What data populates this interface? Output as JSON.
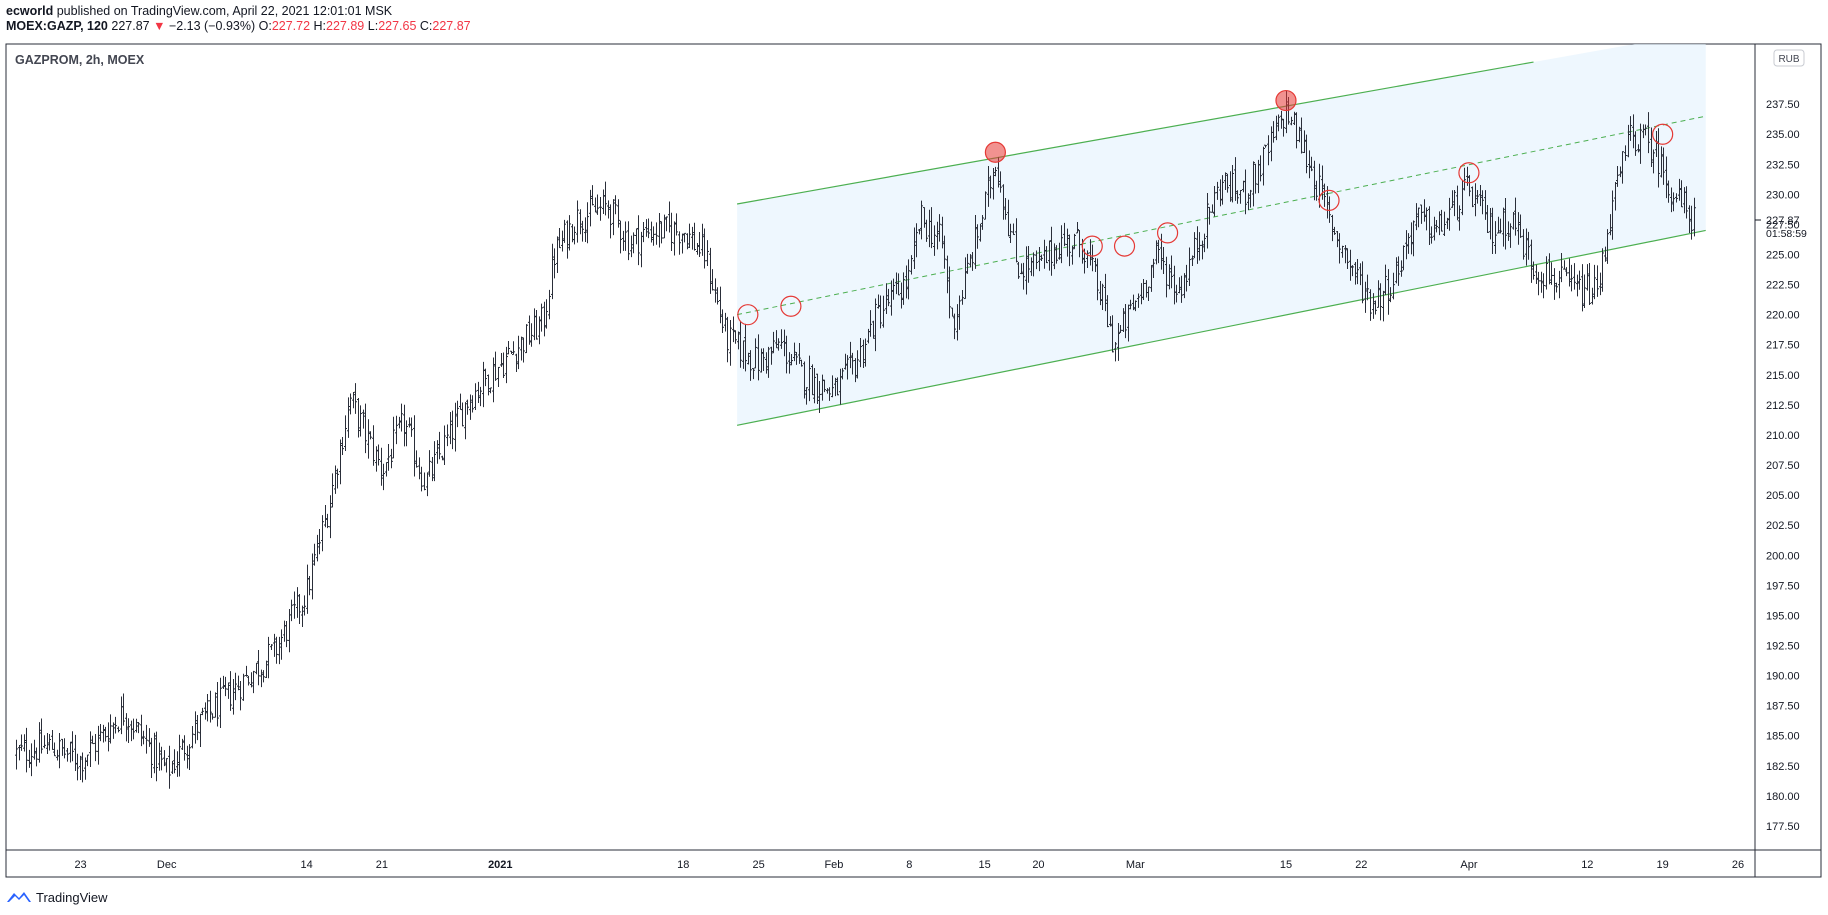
{
  "header": {
    "author": "ecworld",
    "published_text": "published on TradingView.com, April 22, 2021 12:01:01 MSK",
    "symbol": "MOEX:GAZP, 120",
    "last": "227.87",
    "change_arrow": "▼",
    "change": "−2.13 (−0.93%)",
    "o_label": "O:",
    "o_value": "227.72",
    "h_label": "H:",
    "h_value": "227.89",
    "l_label": "L:",
    "l_value": "227.65",
    "c_label": "C:",
    "c_value": "227.87"
  },
  "chart_title": "GAZPROM, 2h, MOEX",
  "currency_badge": "RUB",
  "price_tag": {
    "price": "227.87",
    "countdown": "01:58:59"
  },
  "footer": {
    "brand": "TradingView"
  },
  "colors": {
    "channel_line": "#4caf50",
    "channel_fill": "#e3f2fd",
    "marker_red": "#e53935",
    "candle": "#2a2e39",
    "text_red": "#f23645"
  },
  "chart_data": {
    "type": "candlestick",
    "title": "GAZPROM, 2h, MOEX",
    "ylim": [
      175.5,
      242.5
    ],
    "y_ticks": [
      177.5,
      180,
      182.5,
      185,
      187.5,
      190,
      192.5,
      195,
      197.5,
      200,
      202.5,
      205,
      207.5,
      210,
      212.5,
      215,
      217.5,
      220,
      222.5,
      225,
      227.5,
      230,
      232.5,
      235,
      237.5
    ],
    "x_ticks": [
      "23",
      "Dec",
      "14",
      "21",
      "2021",
      "18",
      "25",
      "Feb",
      "8",
      "15",
      "20",
      "Mar",
      "15",
      "22",
      "Apr",
      "12",
      "19",
      "26"
    ],
    "bold_x_ticks": [
      "2021"
    ],
    "close_path": [
      [
        "Nov 17",
        183.5
      ],
      [
        "Nov 20",
        184.2
      ],
      [
        "Nov 23",
        183.0
      ],
      [
        "Nov 27",
        187.0
      ],
      [
        "Dec 1",
        182.0
      ],
      [
        "Dec 4",
        186.0
      ],
      [
        "Dec 8",
        189.5
      ],
      [
        "Dec 11",
        192.0
      ],
      [
        "Dec 14",
        197.0
      ],
      [
        "Dec 16",
        204.0
      ],
      [
        "Dec 18",
        213.0
      ],
      [
        "Dec 21",
        207.0
      ],
      [
        "Dec 23",
        211.0
      ],
      [
        "Dec 25",
        206.0
      ],
      [
        "Dec 29",
        213.0
      ],
      [
        "Dec 31",
        215.0
      ],
      [
        "Jan 5",
        219.5
      ],
      [
        "Jan 6",
        225.0
      ],
      [
        "Jan 8",
        228.0
      ],
      [
        "Jan 11",
        229.0
      ],
      [
        "Jan 13",
        226.0
      ],
      [
        "Jan 15",
        227.0
      ],
      [
        "Jan 18",
        227.0
      ],
      [
        "Jan 20",
        225.0
      ],
      [
        "Jan 22",
        218.0
      ],
      [
        "Jan 25",
        216.0
      ],
      [
        "Jan 27",
        217.5
      ],
      [
        "Jan 29",
        215.0
      ],
      [
        "Feb 1",
        213.5
      ],
      [
        "Feb 3",
        216.0
      ],
      [
        "Feb 5",
        220.0
      ],
      [
        "Feb 8",
        223.0
      ],
      [
        "Feb 9",
        228.0
      ],
      [
        "Feb 11",
        226.0
      ],
      [
        "Feb 12",
        219.0
      ],
      [
        "Feb 15",
        229.0
      ],
      [
        "Feb 16",
        233.0
      ],
      [
        "Feb 18",
        224.0
      ],
      [
        "Feb 20",
        224.0
      ],
      [
        "Feb 22",
        226.0
      ],
      [
        "Feb 24",
        226.0
      ],
      [
        "Feb 26",
        221.0
      ],
      [
        "Feb 27",
        217.5
      ],
      [
        "Mar 1",
        221.0
      ],
      [
        "Mar 3",
        225.0
      ],
      [
        "Mar 5",
        222.0
      ],
      [
        "Mar 9",
        231.0
      ],
      [
        "Mar 11",
        230.0
      ],
      [
        "Mar 13",
        233.0
      ],
      [
        "Mar 15",
        237.0
      ],
      [
        "Mar 17",
        233.0
      ],
      [
        "Mar 19",
        228.0
      ],
      [
        "Mar 21",
        224.0
      ],
      [
        "Mar 23",
        221.0
      ],
      [
        "Mar 25",
        223.0
      ],
      [
        "Mar 27",
        228.0
      ],
      [
        "Mar 29",
        227.0
      ],
      [
        "Apr 1",
        230.5
      ],
      [
        "Apr 3",
        227.0
      ],
      [
        "Apr 5",
        228.0
      ],
      [
        "Apr 7",
        224.0
      ],
      [
        "Apr 9",
        223.0
      ],
      [
        "Apr 11",
        222.0
      ],
      [
        "Apr 13",
        222.0
      ],
      [
        "Apr 14",
        228.0
      ],
      [
        "Apr 16",
        235.0
      ],
      [
        "Apr 18",
        234.0
      ],
      [
        "Apr 20",
        230.0
      ],
      [
        "Apr 22",
        227.87
      ]
    ],
    "price_range": [
      "Nov 17 - Apr 22",
      178.5,
      237.5
    ],
    "channel": {
      "upper": [
        [
          "Jan 23",
          229.2
        ],
        [
          "Apr 7",
          241.0
        ]
      ],
      "lower": [
        [
          "Jan 23",
          210.8
        ],
        [
          "Apr 23",
          227.0
        ]
      ],
      "middle": [
        [
          "Jan 23",
          220.0
        ],
        [
          "Apr 23",
          236.5
        ]
      ]
    },
    "markers": [
      {
        "date": "Jan 24",
        "price": 220.0,
        "filled": false
      },
      {
        "date": "Jan 28",
        "price": 220.7,
        "filled": false
      },
      {
        "date": "Feb 16",
        "price": 233.5,
        "filled": true
      },
      {
        "date": "Feb 25",
        "price": 225.7,
        "filled": false
      },
      {
        "date": "Feb 28",
        "price": 225.7,
        "filled": false
      },
      {
        "date": "Mar 4",
        "price": 226.8,
        "filled": false
      },
      {
        "date": "Mar 15",
        "price": 237.8,
        "filled": true
      },
      {
        "date": "Mar 19",
        "price": 229.5,
        "filled": false
      },
      {
        "date": "Apr 1",
        "price": 231.8,
        "filled": false
      },
      {
        "date": "Apr 19",
        "price": 235.0,
        "filled": false
      }
    ]
  }
}
